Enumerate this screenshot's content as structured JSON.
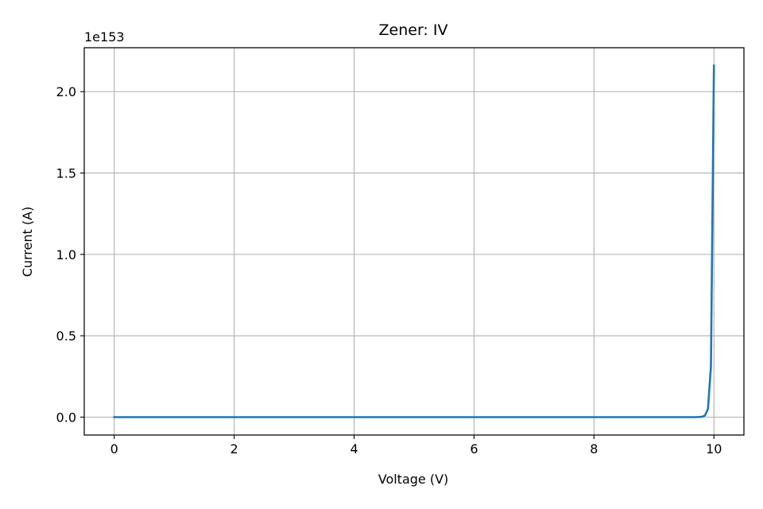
{
  "chart_data": {
    "type": "line",
    "title": "Zener: IV",
    "xlabel": "Voltage (V)",
    "ylabel": "Current (A)",
    "y_offset_label": "1e153",
    "xlim": [
      -0.5,
      10.5
    ],
    "ylim": [
      -0.11,
      2.27
    ],
    "xticks": [
      0,
      2,
      4,
      6,
      8,
      10
    ],
    "xtick_labels": [
      "0",
      "2",
      "4",
      "6",
      "8",
      "10"
    ],
    "yticks": [
      0.0,
      0.5,
      1.0,
      1.5,
      2.0
    ],
    "ytick_labels": [
      "0.0",
      "0.5",
      "1.0",
      "1.5",
      "2.0"
    ],
    "grid": true,
    "colors": {
      "line": "#1f77b4",
      "grid": "#b0b0b0",
      "axes": "#000000"
    },
    "series": [
      {
        "x": [
          0,
          1,
          2,
          3,
          4,
          5,
          6,
          7,
          8,
          9,
          9.5,
          9.7,
          9.8,
          9.85,
          9.9,
          9.95,
          10.0
        ],
        "y": [
          0,
          0,
          0,
          0,
          0,
          0,
          0,
          0,
          0,
          0,
          0,
          0,
          0.002,
          0.01,
          0.05,
          0.31,
          2.16
        ]
      }
    ]
  }
}
